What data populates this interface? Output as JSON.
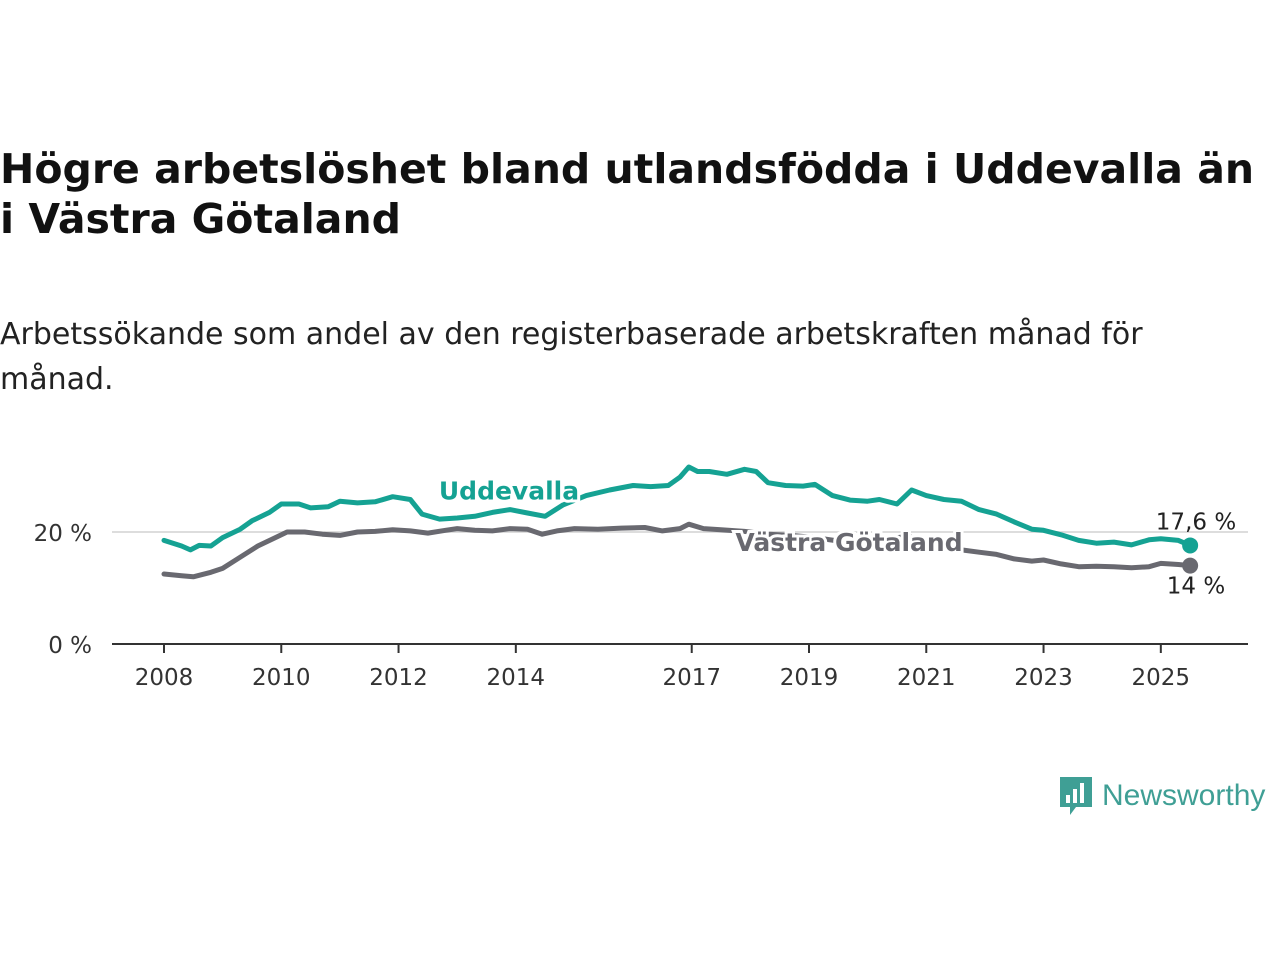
{
  "header": {
    "title": "Högre arbetslöshet bland utlandsfödda i Uddevalla än i Västra Götaland",
    "subtitle": "Arbetssökande som andel av den registerbaserade arbetskraften månad för månad."
  },
  "brand": {
    "name": "Newsworthy",
    "icon": "newsworthy-logo-icon",
    "color": "#3f9f95"
  },
  "chart_data": {
    "type": "line",
    "x_range": [
      2008,
      2025.6
    ],
    "ylim": [
      0,
      30
    ],
    "y_ticks": [
      0,
      20
    ],
    "y_tick_labels": [
      "0 %",
      "20 %"
    ],
    "x_ticks": [
      2008,
      2010,
      2012,
      2014,
      2017,
      2019,
      2021,
      2023,
      2025
    ],
    "x_tick_labels": [
      "2008",
      "2010",
      "2012",
      "2014",
      "2017",
      "2019",
      "2021",
      "2023",
      "2025"
    ],
    "grid": "horizontal gridline at 20 %",
    "series": [
      {
        "name": "Uddevalla",
        "color": "#15a293",
        "end_label": "17,6 %",
        "x": [
          2008,
          2008.3,
          2008.45,
          2008.6,
          2008.8,
          2009,
          2009.3,
          2009.5,
          2009.8,
          2010,
          2010.3,
          2010.5,
          2010.8,
          2011,
          2011.3,
          2011.6,
          2011.9,
          2012.2,
          2012.4,
          2012.7,
          2013,
          2013.3,
          2013.6,
          2013.9,
          2014.2,
          2014.5,
          2014.8,
          2015.2,
          2015.6,
          2016,
          2016.3,
          2016.6,
          2016.8,
          2016.95,
          2017.1,
          2017.3,
          2017.6,
          2017.9,
          2018.1,
          2018.3,
          2018.6,
          2018.9,
          2019.1,
          2019.4,
          2019.7,
          2020,
          2020.2,
          2020.5,
          2020.75,
          2021,
          2021.3,
          2021.6,
          2021.9,
          2022.2,
          2022.5,
          2022.8,
          2023,
          2023.3,
          2023.6,
          2023.9,
          2024.2,
          2024.5,
          2024.8,
          2025,
          2025.3,
          2025.5
        ],
        "values": [
          18.5,
          17.5,
          16.8,
          17.6,
          17.5,
          19,
          20.5,
          22,
          23.5,
          25,
          25,
          24.3,
          24.5,
          25.5,
          25.2,
          25.4,
          26.3,
          25.8,
          23.2,
          22.3,
          22.5,
          22.8,
          23.5,
          24,
          23.4,
          22.8,
          24.8,
          26.5,
          27.5,
          28.3,
          28.1,
          28.3,
          29.8,
          31.6,
          30.8,
          30.8,
          30.3,
          31.2,
          30.8,
          28.8,
          28.3,
          28.2,
          28.5,
          26.5,
          25.7,
          25.5,
          25.8,
          25,
          27.5,
          26.5,
          25.8,
          25.5,
          24,
          23.2,
          21.8,
          20.5,
          20.3,
          19.5,
          18.5,
          18,
          18.2,
          17.7,
          18.6,
          18.8,
          18.5,
          17.6
        ]
      },
      {
        "name": "Västra Götaland",
        "color": "#696970",
        "end_label": "14 %",
        "x": [
          2008,
          2008.3,
          2008.5,
          2008.8,
          2009,
          2009.3,
          2009.6,
          2009.9,
          2010.1,
          2010.4,
          2010.7,
          2011,
          2011.3,
          2011.6,
          2011.9,
          2012.2,
          2012.5,
          2012.8,
          2013,
          2013.3,
          2013.6,
          2013.9,
          2014.2,
          2014.45,
          2014.7,
          2015,
          2015.4,
          2015.8,
          2016.2,
          2016.5,
          2016.8,
          2016.95,
          2017.2,
          2017.5,
          2017.9,
          2018.3,
          2018.7,
          2019.1,
          2019.5,
          2019.9,
          2020.3,
          2020.7,
          2021,
          2021.3,
          2021.6,
          2021.9,
          2022.2,
          2022.5,
          2022.8,
          2023,
          2023.3,
          2023.6,
          2023.9,
          2024.2,
          2024.5,
          2024.8,
          2025,
          2025.3,
          2025.5
        ],
        "values": [
          12.5,
          12.2,
          12,
          12.8,
          13.5,
          15.5,
          17.5,
          19,
          20,
          20,
          19.6,
          19.4,
          20,
          20.1,
          20.4,
          20.2,
          19.8,
          20.3,
          20.6,
          20.3,
          20.2,
          20.6,
          20.5,
          19.6,
          20.2,
          20.6,
          20.5,
          20.7,
          20.8,
          20.2,
          20.6,
          21.4,
          20.6,
          20.4,
          20.1,
          19.6,
          19.4,
          19,
          18.4,
          18.6,
          18.8,
          19.2,
          18.2,
          17.4,
          16.8,
          16.4,
          16,
          15.2,
          14.8,
          15,
          14.3,
          13.8,
          13.9,
          13.8,
          13.6,
          13.8,
          14.4,
          14.2,
          14
        ]
      }
    ]
  }
}
